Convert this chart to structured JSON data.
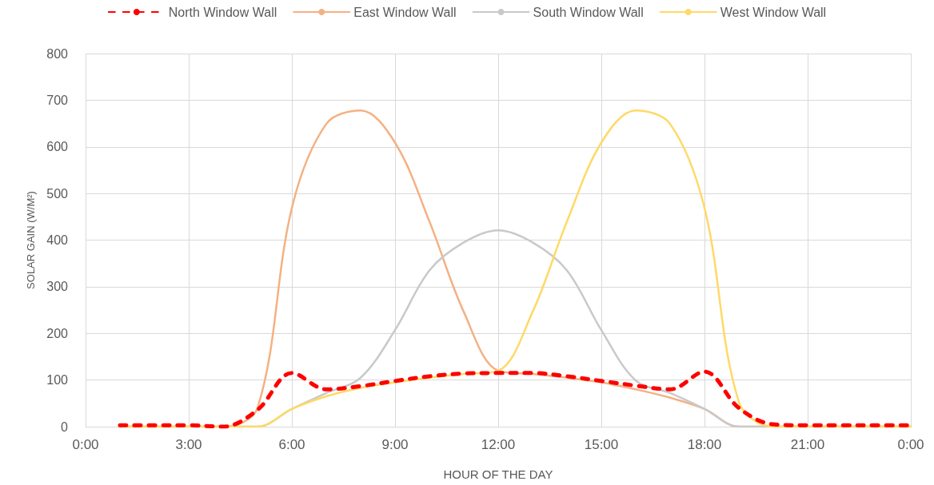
{
  "chart_data": {
    "type": "line",
    "xlabel": "HOUR OF THE DAY",
    "ylabel": "SOLAR GAIN (W/M²)",
    "x": [
      1,
      2,
      3,
      4,
      5,
      6,
      7,
      8,
      9,
      10,
      11,
      12,
      13,
      14,
      15,
      16,
      17,
      18,
      19,
      20,
      21,
      22,
      23,
      24
    ],
    "series": [
      {
        "name": "North Window Wall",
        "color": "#ff0000",
        "line_style": "dashed",
        "values": [
          3,
          3,
          3,
          0,
          36,
          115,
          80,
          87,
          98,
          108,
          114,
          115,
          115,
          108,
          98,
          88,
          80,
          118,
          40,
          5,
          3,
          3,
          3,
          3
        ]
      },
      {
        "name": "East Window Wall",
        "color": "#f4b183",
        "line_style": "solid",
        "values": [
          0,
          0,
          0,
          0,
          40,
          469,
          649,
          678,
          609,
          440,
          246,
          120,
          113,
          105,
          95,
          80,
          62,
          38,
          0,
          0,
          0,
          0,
          0,
          0
        ]
      },
      {
        "name": "South Window Wall",
        "color": "#c9c9c9",
        "line_style": "solid",
        "values": [
          0,
          0,
          0,
          0,
          0,
          38,
          72,
          105,
          207,
          335,
          395,
          421,
          395,
          335,
          207,
          99,
          72,
          38,
          0,
          0,
          0,
          0,
          0,
          0
        ]
      },
      {
        "name": "West Window Wall",
        "color": "#ffd966",
        "line_style": "solid",
        "values": [
          0,
          0,
          0,
          0,
          0,
          38,
          65,
          83,
          95,
          105,
          113,
          120,
          246,
          440,
          609,
          678,
          649,
          469,
          53,
          0,
          0,
          0,
          0,
          0
        ]
      }
    ],
    "xlim": [
      0,
      24
    ],
    "xticks": [
      {
        "value": 0,
        "label": "0:00"
      },
      {
        "value": 3,
        "label": "3:00"
      },
      {
        "value": 6,
        "label": "6:00"
      },
      {
        "value": 9,
        "label": "9:00"
      },
      {
        "value": 12,
        "label": "12:00"
      },
      {
        "value": 15,
        "label": "15:00"
      },
      {
        "value": 18,
        "label": "18:00"
      },
      {
        "value": 21,
        "label": "21:00"
      },
      {
        "value": 24,
        "label": "0:00"
      }
    ],
    "ylim": [
      0,
      800
    ],
    "yticks": [
      0,
      100,
      200,
      300,
      400,
      500,
      600,
      700,
      800
    ],
    "grid": true,
    "legend": "top",
    "marker": "none"
  }
}
